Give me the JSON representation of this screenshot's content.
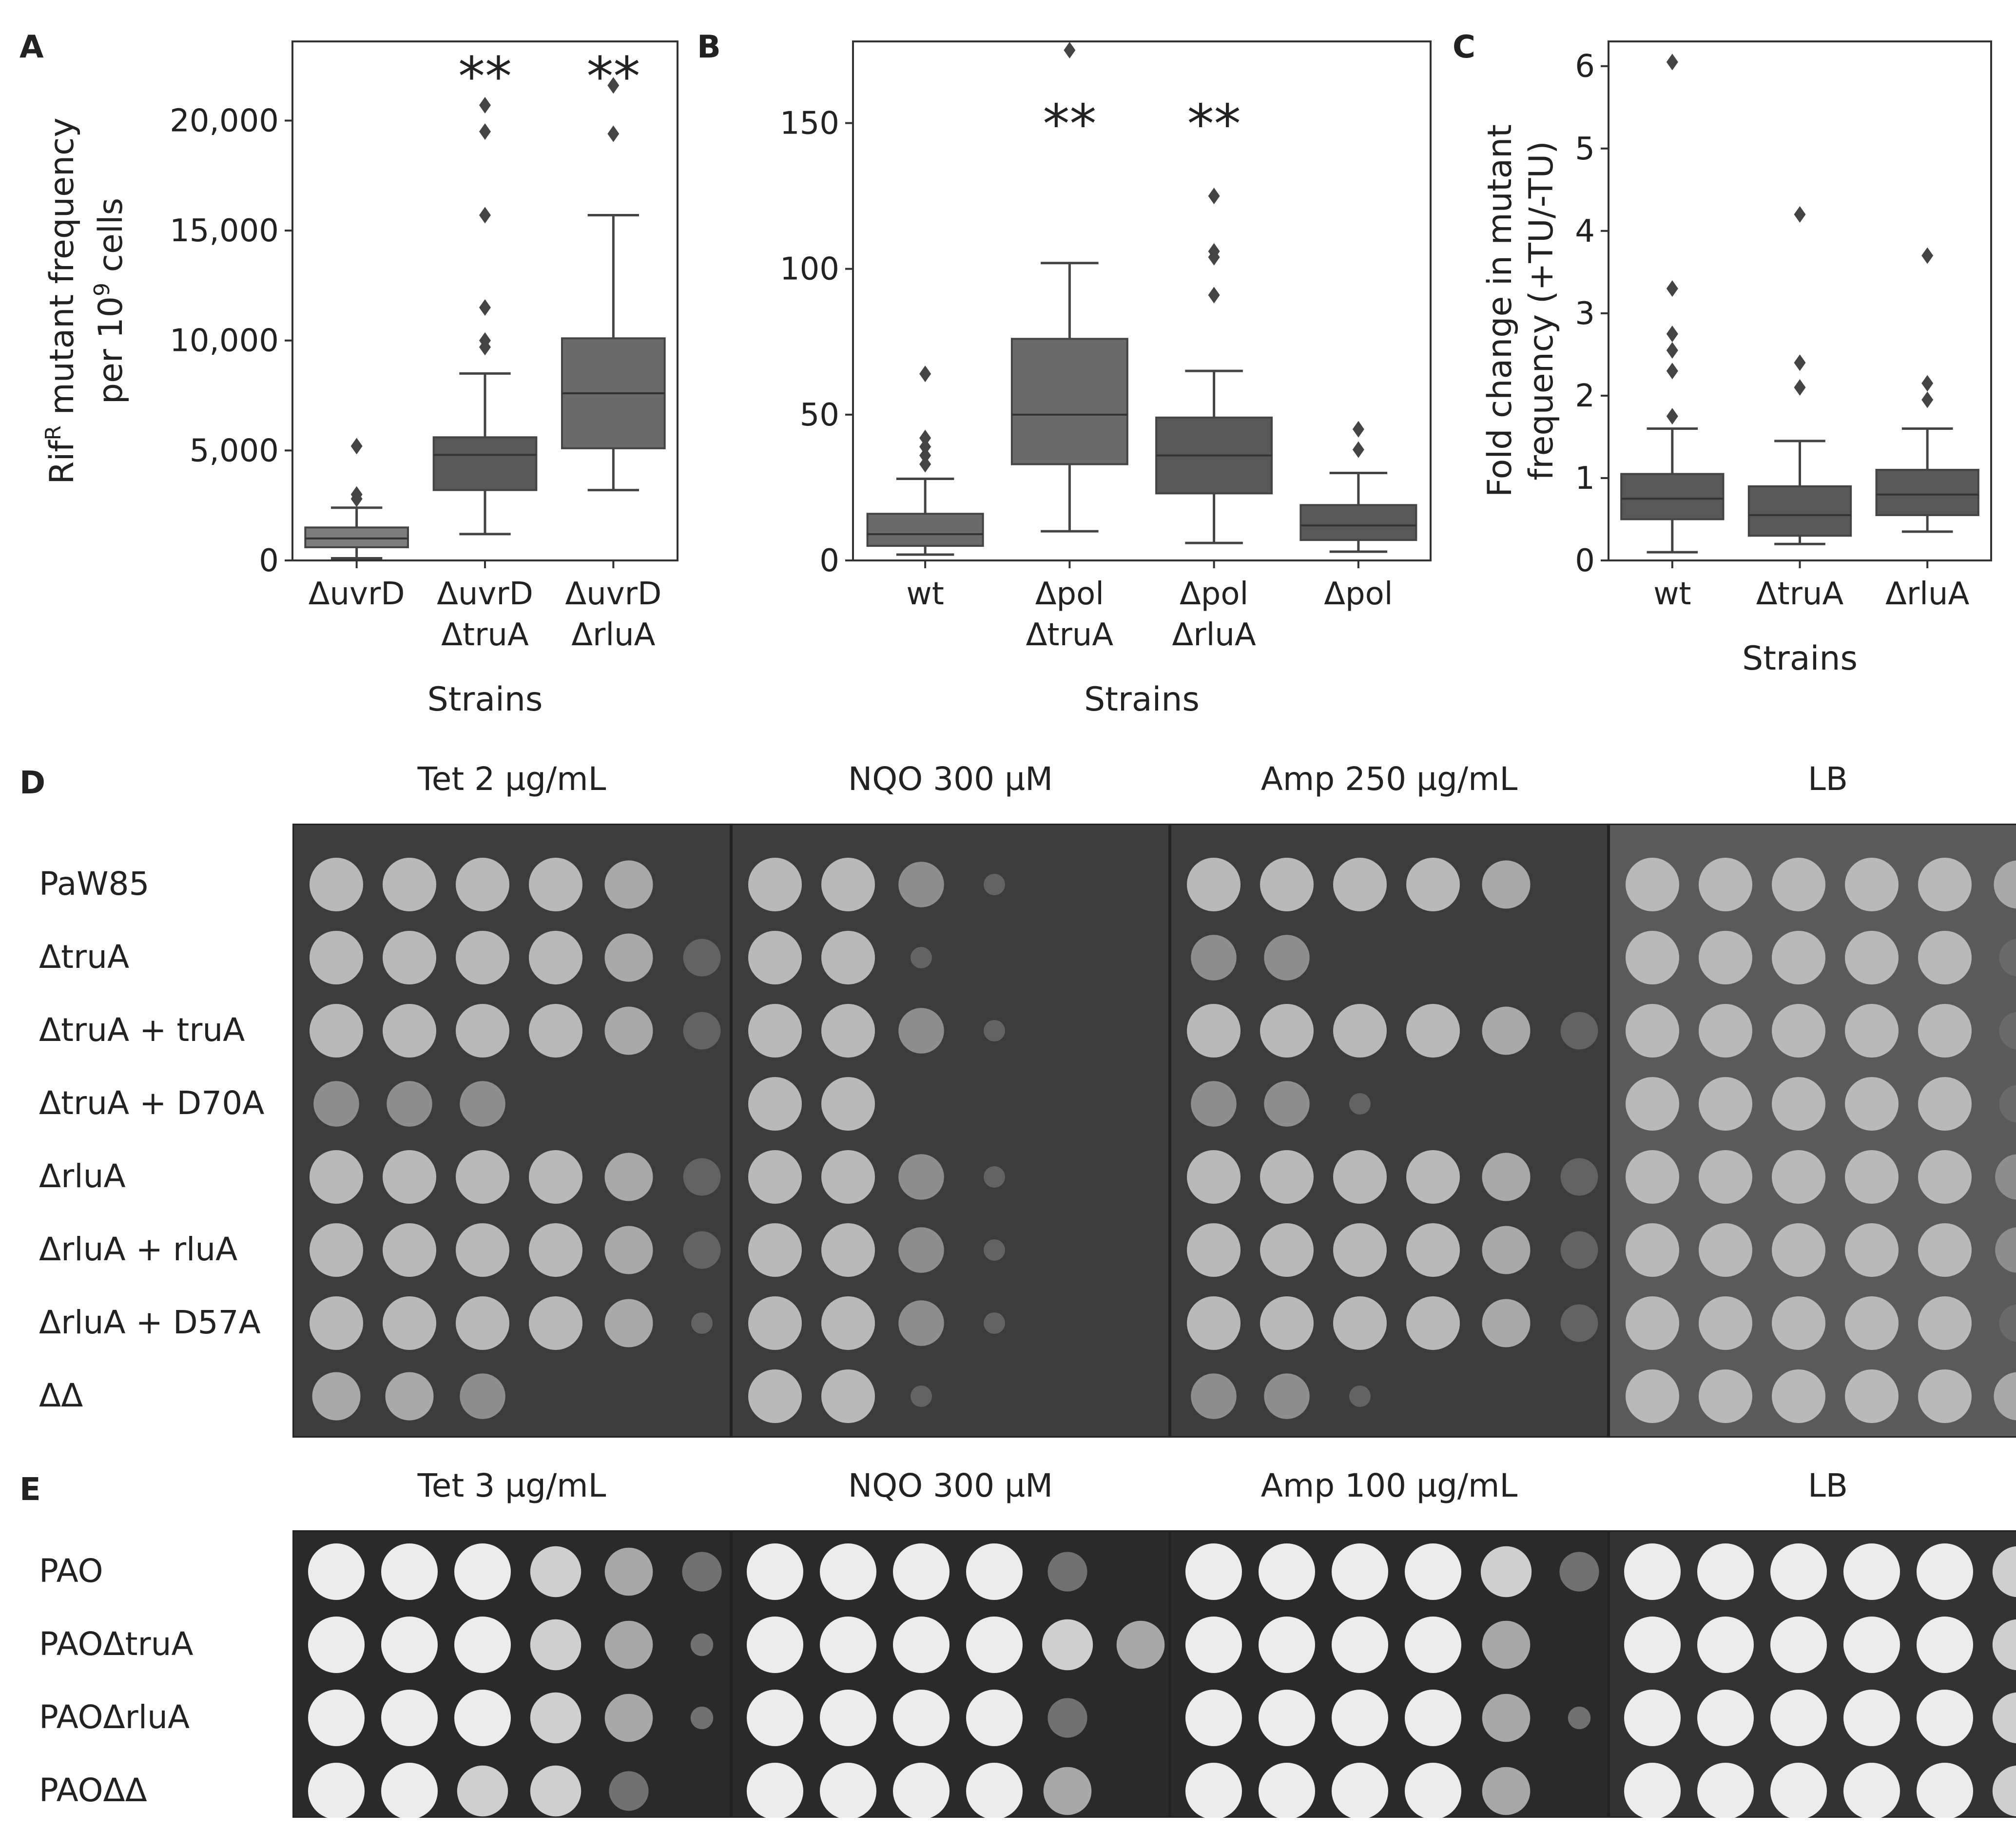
{
  "figure": {
    "panels": {
      "A": "A",
      "B": "B",
      "C": "C",
      "D": "D",
      "E": "E"
    }
  },
  "chart_data": [
    {
      "id": "A",
      "type": "box",
      "xlabel": "Strains",
      "ylabel_line1": "Rif",
      "ylabel_sup": "R",
      "ylabel_line1_rest": " mutant frequency",
      "ylabel_line2": "per 10",
      "ylabel_line2_sup": "9",
      "ylabel_line2_rest": " cells",
      "ylim": [
        0,
        23600
      ],
      "yticks": [
        0,
        5000,
        10000,
        15000,
        20000
      ],
      "yticklabels": [
        "0",
        "5,000",
        "10,000",
        "15,000",
        "20,000"
      ],
      "categories": [
        [
          "ΔuvrD"
        ],
        [
          "ΔuvrD",
          "ΔtruA"
        ],
        [
          "ΔuvrD",
          "ΔrluA"
        ]
      ],
      "boxes": [
        {
          "whislo": 100,
          "q1": 600,
          "med": 1000,
          "q3": 1500,
          "whishi": 2400,
          "fliers": [
            2800,
            3000,
            5200
          ],
          "sig": ""
        },
        {
          "whislo": 1200,
          "q1": 3200,
          "med": 4800,
          "q3": 5600,
          "whishi": 8500,
          "fliers": [
            9700,
            10000,
            11500,
            15700,
            19500,
            20700
          ],
          "sig": "**"
        },
        {
          "whislo": 3200,
          "q1": 5100,
          "med": 7600,
          "q3": 10100,
          "whishi": 15700,
          "fliers": [
            19400,
            21600
          ],
          "sig": "**"
        }
      ],
      "colors": [
        "#7d7d7d",
        "#585858",
        "#6a6a6a"
      ]
    },
    {
      "id": "B",
      "type": "box",
      "xlabel": "Strains",
      "ylim": [
        0,
        178
      ],
      "yticks": [
        0,
        50,
        100,
        150
      ],
      "yticklabels": [
        "0",
        "50",
        "100",
        "150"
      ],
      "categories": [
        [
          "wt"
        ],
        [
          "Δpol",
          "ΔtruA"
        ],
        [
          "Δpol",
          "ΔrluA"
        ],
        [
          "Δpol"
        ]
      ],
      "boxes": [
        {
          "whislo": 2,
          "q1": 5,
          "med": 9,
          "q3": 16,
          "whishi": 28,
          "fliers": [
            33,
            36,
            39,
            42,
            64
          ],
          "sig": ""
        },
        {
          "whislo": 10,
          "q1": 33,
          "med": 50,
          "q3": 76,
          "whishi": 102,
          "fliers": [
            175
          ],
          "sig": "**"
        },
        {
          "whislo": 6,
          "q1": 23,
          "med": 36,
          "q3": 49,
          "whishi": 65,
          "fliers": [
            91,
            104,
            106,
            125
          ],
          "sig": "**"
        },
        {
          "whislo": 3,
          "q1": 7,
          "med": 12,
          "q3": 19,
          "whishi": 30,
          "fliers": [
            38,
            45
          ],
          "sig": ""
        }
      ],
      "colors": [
        "#6a6a6a",
        "#6a6a6a",
        "#585858",
        "#585858"
      ]
    },
    {
      "id": "C",
      "type": "box",
      "xlabel": "Strains",
      "ylabel_line1": "Fold change in mutant",
      "ylabel_line2": "frequency (+TU/-TU)",
      "ylim": [
        0,
        6.3
      ],
      "yticks": [
        0,
        1,
        2,
        3,
        4,
        5,
        6
      ],
      "yticklabels": [
        "0",
        "1",
        "2",
        "3",
        "4",
        "5",
        "6"
      ],
      "categories": [
        [
          "wt"
        ],
        [
          "ΔtruA"
        ],
        [
          "ΔrluA"
        ]
      ],
      "boxes": [
        {
          "whislo": 0.1,
          "q1": 0.5,
          "med": 0.75,
          "q3": 1.05,
          "whishi": 1.6,
          "fliers": [
            1.75,
            2.3,
            2.55,
            2.75,
            3.3,
            6.05
          ],
          "sig": ""
        },
        {
          "whislo": 0.2,
          "q1": 0.3,
          "med": 0.55,
          "q3": 0.9,
          "whishi": 1.45,
          "fliers": [
            2.1,
            2.4,
            4.2
          ],
          "sig": ""
        },
        {
          "whislo": 0.35,
          "q1": 0.55,
          "med": 0.8,
          "q3": 1.1,
          "whishi": 1.6,
          "fliers": [
            1.95,
            2.15,
            3.7
          ],
          "sig": ""
        }
      ],
      "colors": [
        "#585858",
        "#585858",
        "#585858"
      ]
    }
  ],
  "panelD": {
    "conditions": [
      "Tet 2 µg/mL",
      "NQO 300 µM",
      "Amp 250 µg/mL",
      "LB"
    ],
    "strains": [
      "PaW85",
      "ΔtruA",
      "ΔtruA + truA",
      "ΔtruA + D70A",
      "ΔrluA",
      "ΔrluA + rluA",
      "ΔrluA + D57A",
      "ΔΔ"
    ],
    "growth": [
      [
        [
          5,
          5,
          5,
          5,
          4,
          0
        ],
        [
          5,
          5,
          5,
          5,
          4,
          2
        ],
        [
          5,
          5,
          5,
          5,
          4,
          2
        ],
        [
          3,
          3,
          3,
          0,
          0,
          0
        ],
        [
          5,
          5,
          5,
          5,
          4,
          2
        ],
        [
          5,
          5,
          5,
          5,
          4,
          2
        ],
        [
          5,
          5,
          5,
          5,
          4,
          1
        ],
        [
          4,
          4,
          3,
          0,
          0,
          0
        ]
      ],
      [
        [
          5,
          5,
          3,
          1,
          0,
          0
        ],
        [
          5,
          5,
          1,
          0,
          0,
          0
        ],
        [
          5,
          5,
          3,
          1,
          0,
          0
        ],
        [
          5,
          5,
          0,
          0,
          0,
          0
        ],
        [
          5,
          5,
          3,
          1,
          0,
          0
        ],
        [
          5,
          5,
          3,
          1,
          0,
          0
        ],
        [
          5,
          5,
          3,
          1,
          0,
          0
        ],
        [
          5,
          5,
          1,
          0,
          0,
          0
        ]
      ],
      [
        [
          5,
          5,
          5,
          5,
          4,
          0
        ],
        [
          3,
          3,
          0,
          0,
          0,
          0
        ],
        [
          5,
          5,
          5,
          5,
          4,
          2
        ],
        [
          3,
          3,
          1,
          0,
          0,
          0
        ],
        [
          5,
          5,
          5,
          5,
          4,
          2
        ],
        [
          5,
          5,
          5,
          5,
          4,
          2
        ],
        [
          5,
          5,
          5,
          5,
          4,
          2
        ],
        [
          3,
          3,
          1,
          0,
          0,
          0
        ]
      ],
      [
        [
          5,
          5,
          5,
          5,
          5,
          4
        ],
        [
          5,
          5,
          5,
          5,
          5,
          2
        ],
        [
          5,
          5,
          5,
          5,
          5,
          2
        ],
        [
          5,
          5,
          5,
          5,
          5,
          2
        ],
        [
          5,
          5,
          5,
          5,
          5,
          3
        ],
        [
          5,
          5,
          5,
          5,
          5,
          3
        ],
        [
          5,
          5,
          5,
          5,
          5,
          2
        ],
        [
          5,
          5,
          5,
          5,
          5,
          4
        ]
      ]
    ]
  },
  "panelE": {
    "conditions": [
      "Tet 3 µg/mL",
      "NQO 300 µM",
      "Amp 100 µg/mL",
      "LB"
    ],
    "strains": [
      "PAO",
      "PAOΔtruA",
      "PAOΔrluA",
      "PAOΔΔ"
    ],
    "growth": [
      [
        [
          5,
          5,
          5,
          4,
          3,
          2
        ],
        [
          5,
          5,
          5,
          4,
          3,
          1
        ],
        [
          5,
          5,
          5,
          4,
          3,
          1
        ],
        [
          5,
          5,
          4,
          4,
          2,
          0
        ]
      ],
      [
        [
          5,
          5,
          5,
          5,
          2,
          0
        ],
        [
          5,
          5,
          5,
          5,
          4,
          3
        ],
        [
          5,
          5,
          5,
          5,
          2,
          0
        ],
        [
          5,
          5,
          5,
          5,
          3,
          0
        ]
      ],
      [
        [
          5,
          5,
          5,
          5,
          4,
          2
        ],
        [
          5,
          5,
          5,
          5,
          3,
          0
        ],
        [
          5,
          5,
          5,
          5,
          3,
          1
        ],
        [
          5,
          5,
          5,
          5,
          3,
          0
        ]
      ],
      [
        [
          5,
          5,
          5,
          5,
          5,
          4
        ],
        [
          5,
          5,
          5,
          5,
          5,
          4
        ],
        [
          5,
          5,
          5,
          5,
          5,
          4
        ],
        [
          5,
          5,
          5,
          5,
          5,
          4
        ]
      ]
    ]
  }
}
